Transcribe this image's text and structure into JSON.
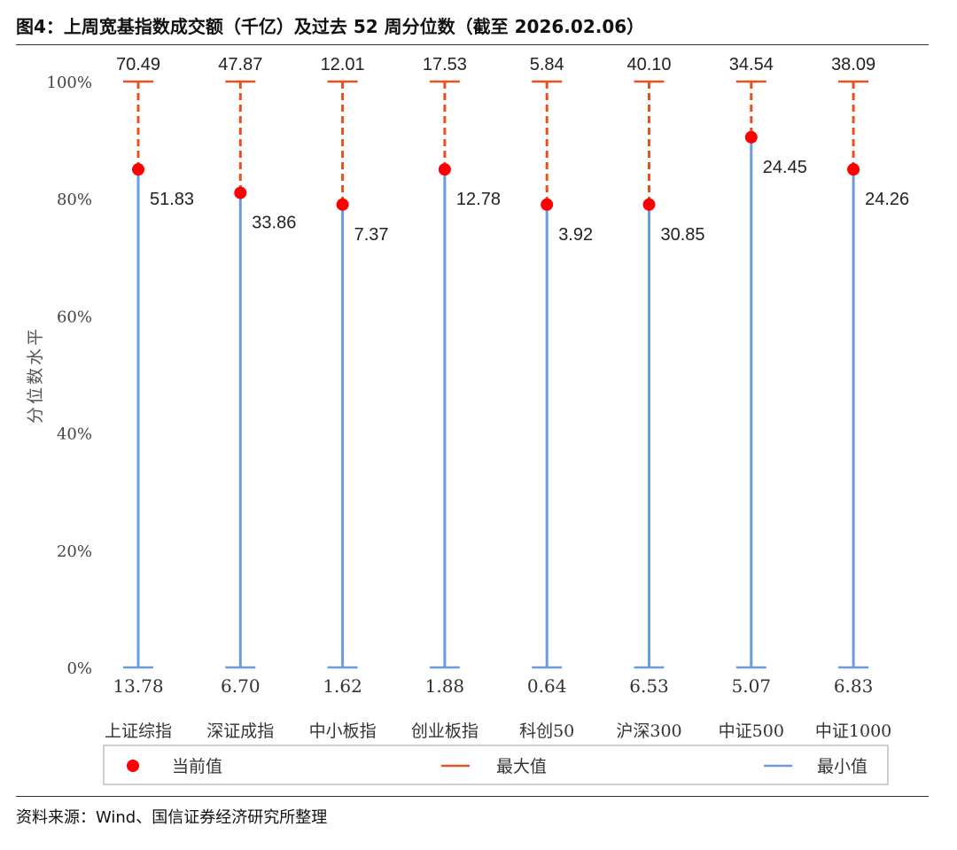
{
  "title": "图4：上周宽基指数成交额（千亿）及过去 52 周分位数（截至 2026.02.06）",
  "source": "资料来源：Wind、国信证券经济研究所整理",
  "colors": {
    "current": "#ff0000",
    "max": "#e8501e",
    "min": "#6a9be0",
    "legend_border": "#bfbfbf"
  },
  "chart_data": {
    "type": "scatter",
    "ylabel": "分位数水平",
    "ylim": [
      0,
      100
    ],
    "yticks": [
      "0%",
      "20%",
      "40%",
      "60%",
      "80%",
      "100%"
    ],
    "categories": [
      "上证综指",
      "深证成指",
      "中小板指",
      "创业板指",
      "科创50",
      "沪深300",
      "中证500",
      "中证1000"
    ],
    "max_values": [
      "70.49",
      "47.87",
      "12.01",
      "17.53",
      "5.84",
      "40.10",
      "34.54",
      "38.09"
    ],
    "min_values": [
      "13.78",
      "6.70",
      "1.62",
      "1.88",
      "0.64",
      "6.53",
      "5.07",
      "6.83"
    ],
    "current_values": [
      "51.83",
      "33.86",
      "7.37",
      "12.78",
      "3.92",
      "30.85",
      "24.45",
      "24.26"
    ],
    "current_percentile": [
      85,
      81,
      79,
      85,
      79,
      79,
      90.5,
      85
    ],
    "series": [
      {
        "name": "当前值",
        "marker": "dot"
      },
      {
        "name": "最大值",
        "marker": "dash"
      },
      {
        "name": "最小值",
        "marker": "line"
      }
    ],
    "legend_position": "bottom",
    "grid": false
  }
}
